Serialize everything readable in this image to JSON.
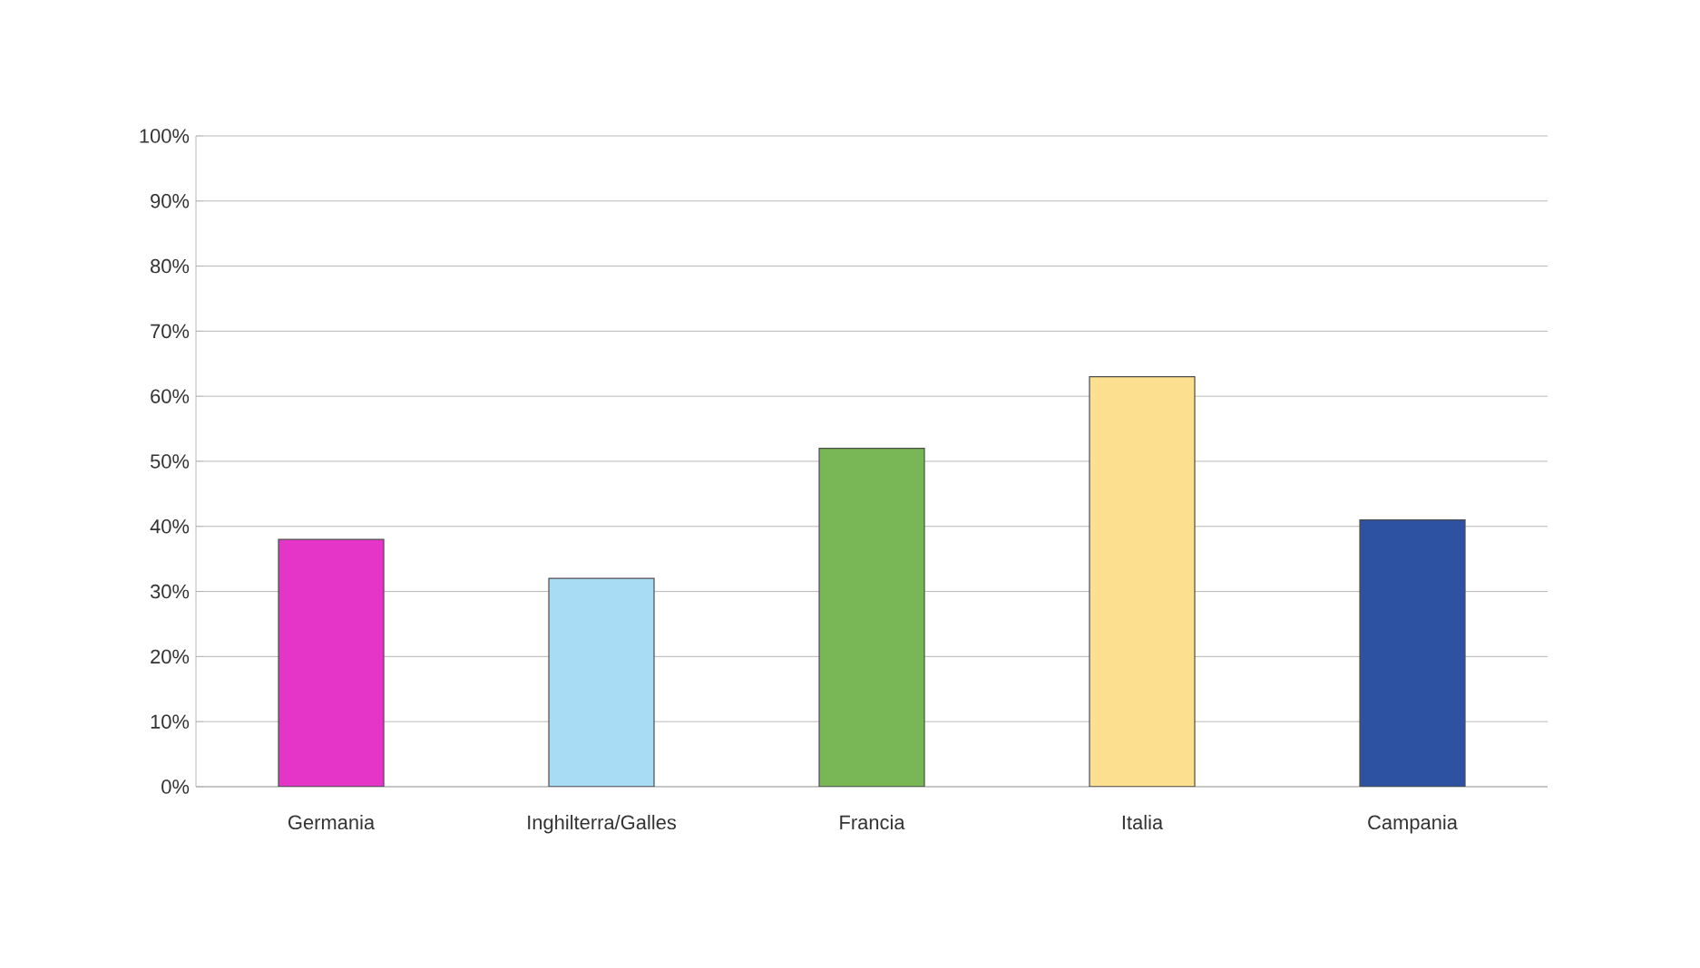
{
  "chart_data": {
    "type": "bar",
    "categories": [
      "Germania",
      "Inghilterra/Galles",
      "Francia",
      "Italia",
      "Campania"
    ],
    "values": [
      38,
      32,
      52,
      63,
      41
    ],
    "colors": [
      "#e535c8",
      "#a8dcf5",
      "#79b655",
      "#fde08f",
      "#2d52a2"
    ],
    "ylim": [
      0,
      100
    ],
    "yticks": [
      {
        "value": 0,
        "label": "0%"
      },
      {
        "value": 10,
        "label": "10%"
      },
      {
        "value": 20,
        "label": "20%"
      },
      {
        "value": 30,
        "label": "30%"
      },
      {
        "value": 40,
        "label": "40%"
      },
      {
        "value": 50,
        "label": "50%"
      },
      {
        "value": 60,
        "label": "60%"
      },
      {
        "value": 70,
        "label": "70%"
      },
      {
        "value": 80,
        "label": "80%"
      },
      {
        "value": 90,
        "label": "90%"
      },
      {
        "value": 100,
        "label": "100%"
      }
    ],
    "grid": "y"
  }
}
